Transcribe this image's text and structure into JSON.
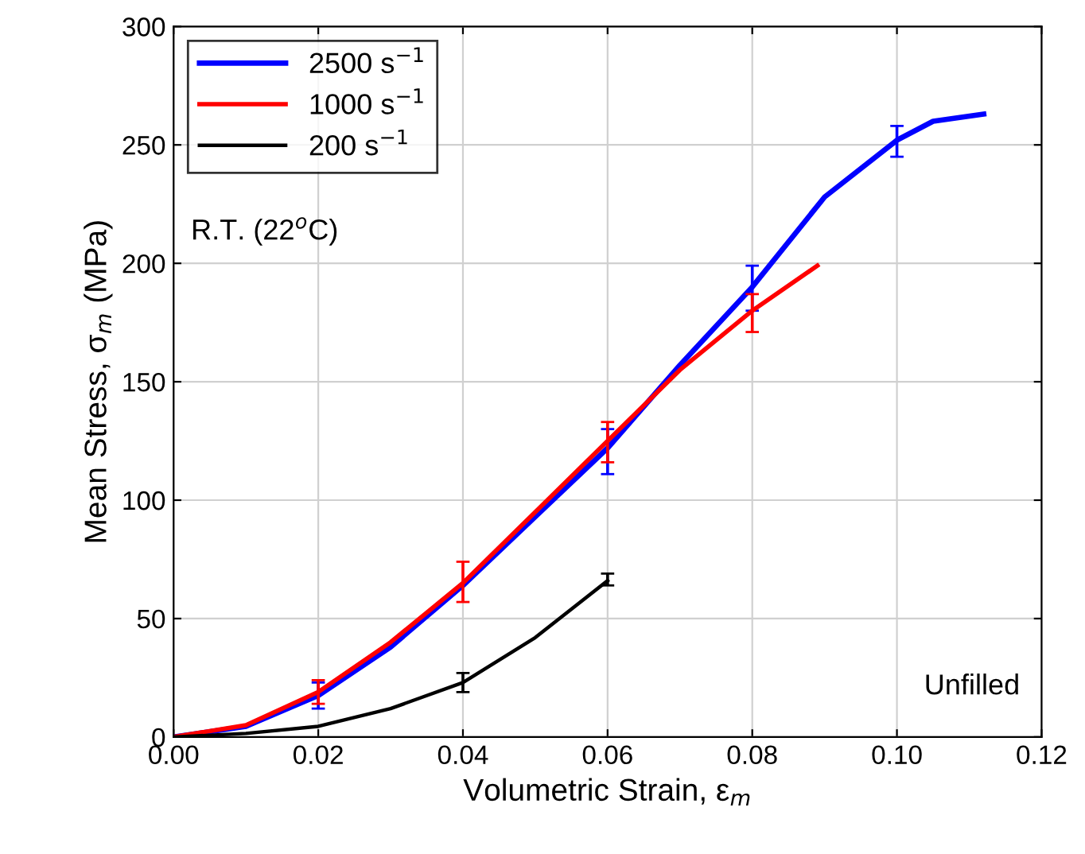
{
  "chart_data": {
    "type": "line",
    "xlabel": "Volumetric Strain, ε$_{m}$",
    "ylabel": "Mean Stress, σ$_{m}$ (MPa)",
    "xlim": [
      0,
      0.12
    ],
    "ylim": [
      0,
      300
    ],
    "xticks": [
      {
        "value": 0,
        "label": "0.00"
      },
      {
        "value": 0.02,
        "label": "0.02"
      },
      {
        "value": 0.04,
        "label": "0.04"
      },
      {
        "value": 0.06,
        "label": "0.06"
      },
      {
        "value": 0.08,
        "label": "0.08"
      },
      {
        "value": 0.1,
        "label": "0.10"
      },
      {
        "value": 0.12,
        "label": "0.12"
      }
    ],
    "yticks": [
      0,
      50,
      100,
      150,
      200,
      250,
      300
    ],
    "grid": true,
    "legend": "top left",
    "marker": "none",
    "line_style": "solid",
    "annotations": [
      "R.T. (22$^{o}$C)",
      "Unfilled"
    ],
    "series": [
      {
        "name": "2500 s$^{−1}$",
        "color": "#0000ff",
        "x": [
          0,
          0.01,
          0.02,
          0.03,
          0.04,
          0.05,
          0.06,
          0.07,
          0.08,
          0.09,
          0.1,
          0.105,
          0.112
        ],
        "values": [
          0,
          4.5,
          17.5,
          38,
          64,
          93,
          122,
          157,
          190,
          228,
          252,
          260,
          263
        ],
        "errors": [
          null,
          null,
          [
            12,
            23
          ],
          null,
          null,
          null,
          [
            111,
            130
          ],
          null,
          [
            180,
            199
          ],
          null,
          [
            245,
            258
          ],
          null,
          null
        ]
      },
      {
        "name": "1000 s$^{−1}$",
        "color": "#ff0000",
        "x": [
          0,
          0.01,
          0.02,
          0.03,
          0.04,
          0.05,
          0.06,
          0.07,
          0.08,
          0.089
        ],
        "values": [
          0,
          5,
          19,
          40,
          65,
          95,
          125,
          155,
          180,
          199
        ],
        "errors": [
          null,
          null,
          [
            14,
            24
          ],
          null,
          [
            57,
            74
          ],
          null,
          [
            116,
            133
          ],
          null,
          [
            171,
            187
          ],
          null
        ]
      },
      {
        "name": "200 s$^{−1}$",
        "color": "#000000",
        "x": [
          0,
          0.01,
          0.02,
          0.03,
          0.04,
          0.05,
          0.06
        ],
        "values": [
          0,
          1.5,
          4.5,
          12,
          23,
          42,
          66
        ],
        "errors": [
          null,
          null,
          null,
          null,
          [
            19,
            27
          ],
          null,
          [
            64,
            69
          ]
        ]
      }
    ]
  }
}
